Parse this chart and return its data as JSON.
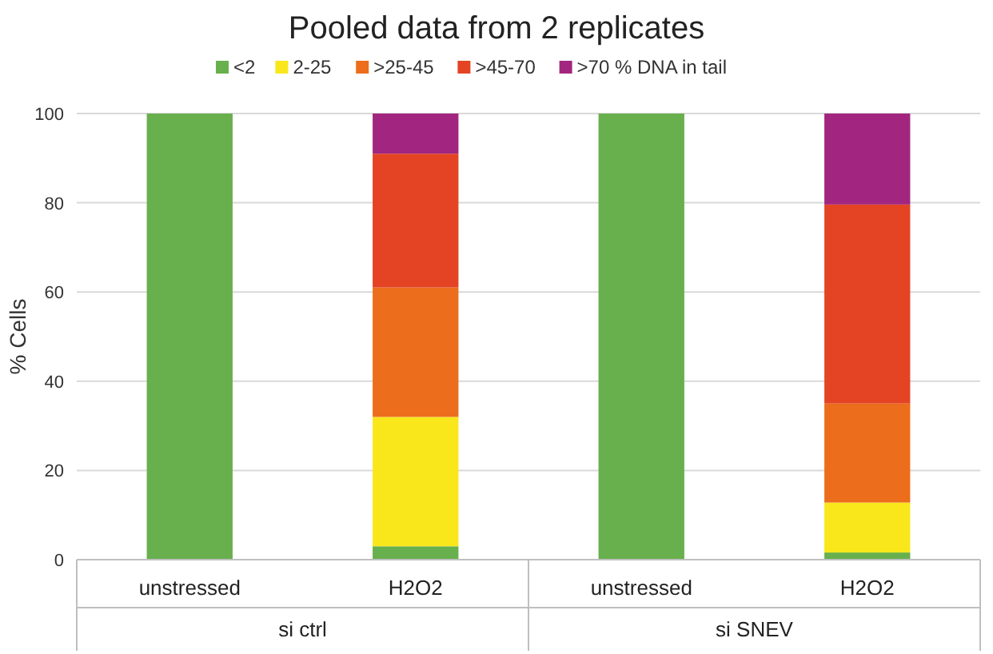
{
  "chart_data": {
    "type": "bar",
    "title": "Pooled data from 2 replicates",
    "ylabel": "% Cells",
    "categories": [
      "unstressed",
      "H2O2",
      "unstressed",
      "H2O2"
    ],
    "stacked": true,
    "series": [
      {
        "name": "<2",
        "color": "#68b04d",
        "values": [
          100,
          3,
          100,
          1.6
        ]
      },
      {
        "name": "2-25",
        "color": "#f9e71c",
        "values": [
          0,
          29,
          0,
          11.2
        ]
      },
      {
        "name": ">25-45",
        "color": "#ec6e1c",
        "values": [
          0,
          29,
          0,
          22.2
        ]
      },
      {
        "name": ">45-70",
        "color": "#e44424",
        "values": [
          0,
          30,
          0,
          44.6
        ]
      },
      {
        "name": ">70 % DNA in tail",
        "color": "#a2267f",
        "values": [
          0,
          9,
          0,
          20.4
        ]
      }
    ],
    "ylim": [
      0,
      100
    ],
    "yticks": [
      0,
      20,
      40,
      60,
      80,
      100
    ],
    "grid": "y",
    "legend": "top",
    "annotations": [
      "si ctrl",
      "si SNEV"
    ]
  }
}
